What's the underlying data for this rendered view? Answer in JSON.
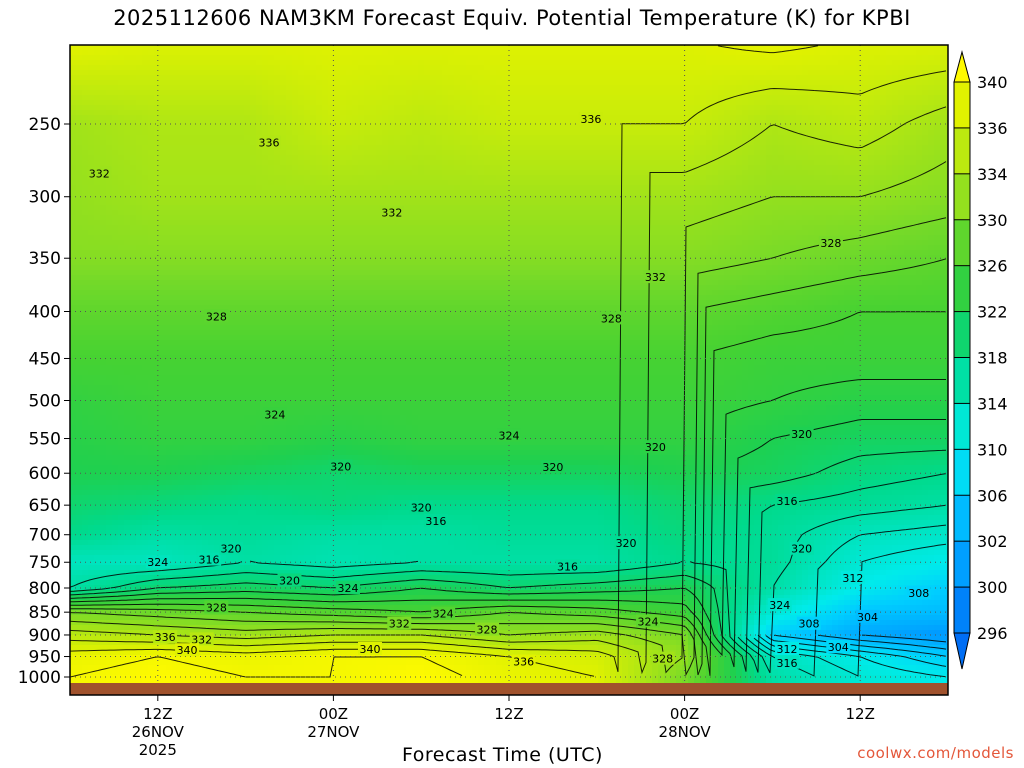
{
  "title": "2025112606 NAM3KM Forecast Equiv. Potential Temperature (K) for KPBI",
  "watermark": "coolwx.com/models",
  "chart_data": {
    "type": "heatmap",
    "title": "2025112606 NAM3KM Forecast Equiv. Potential Temperature (K) for KPBI",
    "xlabel": "Forecast Time (UTC)",
    "ylabel": "",
    "x_range_hours": [
      6,
      66
    ],
    "y_ticks": [
      250,
      300,
      350,
      400,
      450,
      500,
      550,
      600,
      650,
      700,
      750,
      800,
      850,
      900,
      950,
      1000
    ],
    "x_ticks": [
      {
        "hour": 12,
        "lines": [
          "12Z",
          "26NOV",
          "2025"
        ]
      },
      {
        "hour": 24,
        "lines": [
          "00Z",
          "27NOV"
        ]
      },
      {
        "hour": 36,
        "lines": [
          "12Z"
        ]
      },
      {
        "hour": 48,
        "lines": [
          "00Z",
          "28NOV"
        ]
      },
      {
        "hour": 60,
        "lines": [
          "12Z"
        ]
      }
    ],
    "colorbar_labels": [
      340,
      336,
      334,
      330,
      326,
      322,
      318,
      314,
      310,
      306,
      302,
      300,
      296
    ],
    "contour_levels": [
      296,
      300,
      302,
      304,
      306,
      308,
      310,
      312,
      314,
      316,
      318,
      320,
      322,
      324,
      326,
      328,
      330,
      332,
      334,
      336,
      338,
      340
    ],
    "profile_levels_hpa": [
      200,
      250,
      300,
      350,
      400,
      450,
      500,
      550,
      600,
      650,
      700,
      750,
      800,
      850,
      900,
      950,
      1000
    ],
    "times_hours": [
      6,
      12,
      18,
      24,
      30,
      36,
      42,
      48,
      54,
      60,
      66
    ],
    "theta_e_k": [
      [
        339,
        338,
        338,
        338,
        338,
        338,
        338,
        338,
        339,
        338,
        338
      ],
      [
        333,
        334,
        334,
        336,
        335,
        336,
        336,
        336,
        334,
        335,
        333
      ],
      [
        332,
        333,
        333,
        333,
        333,
        333,
        333,
        333,
        332,
        332,
        331
      ],
      [
        331,
        331,
        331,
        331,
        331,
        331,
        331,
        331,
        330,
        329,
        328
      ],
      [
        328,
        328,
        328,
        328,
        328,
        328,
        328,
        328,
        327,
        326,
        326
      ],
      [
        326,
        326,
        326,
        326,
        326,
        326,
        326,
        326,
        325,
        325,
        325
      ],
      [
        324,
        325,
        325,
        325,
        325,
        325,
        325,
        325,
        324,
        323,
        323
      ],
      [
        323,
        324,
        324,
        323,
        324,
        324,
        324,
        324,
        322,
        321,
        321
      ],
      [
        322,
        322,
        321,
        320,
        321,
        321,
        321,
        322,
        321,
        319,
        318
      ],
      [
        320,
        319,
        318,
        319,
        318,
        318,
        318,
        320,
        318,
        317,
        316
      ],
      [
        318,
        316,
        317,
        316,
        316,
        317,
        317,
        319,
        317,
        314,
        313
      ],
      [
        314,
        314,
        316,
        315,
        316,
        316,
        316,
        318,
        317,
        312,
        310
      ],
      [
        316,
        320,
        321,
        320,
        322,
        320,
        321,
        322,
        316,
        310,
        306
      ],
      [
        330,
        329,
        328,
        327,
        326,
        328,
        327,
        325,
        312,
        305,
        304
      ],
      [
        335,
        334,
        333,
        334,
        334,
        332,
        333,
        330,
        306,
        302,
        300
      ],
      [
        339,
        340,
        339,
        340,
        340,
        338,
        337,
        332,
        314,
        310,
        306
      ],
      [
        340,
        341,
        340,
        340,
        341,
        339,
        338,
        330,
        316,
        312,
        310
      ]
    ],
    "contour_labels": [
      {
        "text": "336",
        "hour": 19.6,
        "p": 262
      },
      {
        "text": "336",
        "hour": 41.6,
        "p": 247
      },
      {
        "text": "332",
        "hour": 8.0,
        "p": 283
      },
      {
        "text": "332",
        "hour": 28.0,
        "p": 312
      },
      {
        "text": "332",
        "hour": 46.0,
        "p": 367
      },
      {
        "text": "328",
        "hour": 16.0,
        "p": 405
      },
      {
        "text": "328",
        "hour": 43.0,
        "p": 407
      },
      {
        "text": "328",
        "hour": 58.0,
        "p": 337
      },
      {
        "text": "324",
        "hour": 20.0,
        "p": 518
      },
      {
        "text": "324",
        "hour": 36.0,
        "p": 546
      },
      {
        "text": "320",
        "hour": 24.5,
        "p": 590
      },
      {
        "text": "320",
        "hour": 39.0,
        "p": 591
      },
      {
        "text": "320",
        "hour": 46.0,
        "p": 562
      },
      {
        "text": "320",
        "hour": 56.0,
        "p": 544
      },
      {
        "text": "320",
        "hour": 30.0,
        "p": 654
      },
      {
        "text": "316",
        "hour": 31.0,
        "p": 676
      },
      {
        "text": "316",
        "hour": 55.0,
        "p": 643
      },
      {
        "text": "320",
        "hour": 44.0,
        "p": 715
      },
      {
        "text": "320",
        "hour": 56.0,
        "p": 725
      },
      {
        "text": "316",
        "hour": 40.0,
        "p": 758
      },
      {
        "text": "324",
        "hour": 12.0,
        "p": 750
      },
      {
        "text": "316",
        "hour": 15.5,
        "p": 745
      },
      {
        "text": "320",
        "hour": 17.0,
        "p": 725
      },
      {
        "text": "320",
        "hour": 21.0,
        "p": 785
      },
      {
        "text": "324",
        "hour": 25.0,
        "p": 800
      },
      {
        "text": "312",
        "hour": 59.5,
        "p": 780
      },
      {
        "text": "308",
        "hour": 64.0,
        "p": 810
      },
      {
        "text": "304",
        "hour": 60.5,
        "p": 860
      },
      {
        "text": "328",
        "hour": 16.0,
        "p": 840
      },
      {
        "text": "324",
        "hour": 31.5,
        "p": 853
      },
      {
        "text": "324",
        "hour": 45.5,
        "p": 870
      },
      {
        "text": "324",
        "hour": 54.5,
        "p": 835
      },
      {
        "text": "332",
        "hour": 28.5,
        "p": 875
      },
      {
        "text": "328",
        "hour": 34.5,
        "p": 888
      },
      {
        "text": "308",
        "hour": 56.5,
        "p": 875
      },
      {
        "text": "336",
        "hour": 12.5,
        "p": 905
      },
      {
        "text": "332",
        "hour": 15.0,
        "p": 910
      },
      {
        "text": "340",
        "hour": 14.0,
        "p": 935
      },
      {
        "text": "340",
        "hour": 26.5,
        "p": 932
      },
      {
        "text": "312",
        "hour": 55.0,
        "p": 932
      },
      {
        "text": "304",
        "hour": 58.5,
        "p": 928
      },
      {
        "text": "336",
        "hour": 37.0,
        "p": 962
      },
      {
        "text": "328",
        "hour": 46.5,
        "p": 955
      },
      {
        "text": "316",
        "hour": 55.0,
        "p": 965
      }
    ]
  }
}
